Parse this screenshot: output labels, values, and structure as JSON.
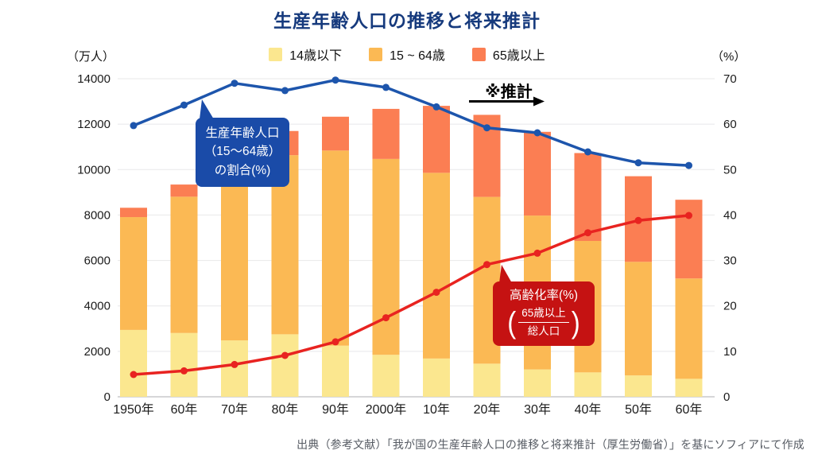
{
  "title": "生産年齢人口の推移と将来推計",
  "projection_note": "※推計",
  "source": "出典（参考文献）「我が国の生産年齢人口の推移と将来推計（厚生労働省）」を基にソフィアにて作成",
  "units": {
    "left": "（万人）",
    "right": "（%）"
  },
  "legend": {
    "items": [
      {
        "label": "14歳以下",
        "color": "#FBE78F"
      },
      {
        "label": "15 ~ 64歳",
        "color": "#FBB954"
      },
      {
        "label": "65歳以上",
        "color": "#FB7E53"
      }
    ]
  },
  "annotations": {
    "working_share": {
      "lines": [
        "生産年齢人口",
        "（15〜64歳）",
        "の割合(%)"
      ],
      "bg": "#1A4BA8"
    },
    "aging_rate": {
      "label": "高齢化率(%)",
      "fraction_top": "65歳以上",
      "fraction_bottom": "総人口",
      "bg": "#C51212"
    }
  },
  "colors": {
    "blue_line": "#1D55AC",
    "red_line": "#E82320",
    "grid": "#E8E8EA",
    "baseline": "#C9C9CC",
    "tick_text": "#1B1B1B"
  },
  "chart_data": {
    "type": "stacked-bar + line combo",
    "categories": [
      "1950年",
      "60年",
      "70年",
      "80年",
      "90年",
      "2000年",
      "10年",
      "20年",
      "30年",
      "40年",
      "50年",
      "60年"
    ],
    "series": [
      {
        "name": "14歳以下",
        "type": "bar",
        "stack": "population",
        "axis": "left",
        "color": "#FBE78F",
        "values": [
          2943,
          2807,
          2482,
          2751,
          2249,
          1847,
          1684,
          1457,
          1204,
          1073,
          939,
          791
        ]
      },
      {
        "name": "15 ~ 64歳",
        "type": "bar",
        "stack": "population",
        "axis": "left",
        "color": "#FBB954",
        "values": [
          4966,
          6000,
          7157,
          7883,
          8590,
          8622,
          8174,
          7341,
          6773,
          5787,
          5001,
          4418
        ]
      },
      {
        "name": "65歳以上",
        "type": "bar",
        "stack": "population",
        "axis": "left",
        "color": "#FB7E53",
        "values": [
          411,
          535,
          733,
          1065,
          1489,
          2204,
          2948,
          3612,
          3685,
          3868,
          3768,
          3464
        ]
      },
      {
        "name": "生産年齢人口（15〜64歳）の割合(%)",
        "type": "line",
        "axis": "right",
        "color": "#1D55AC",
        "values": [
          59.7,
          64.2,
          69.0,
          67.4,
          69.7,
          68.1,
          63.8,
          59.2,
          58.1,
          53.9,
          51.5,
          50.9
        ]
      },
      {
        "name": "高齢化率(%)（65歳以上/総人口）",
        "type": "line",
        "axis": "right",
        "color": "#E82320",
        "values": [
          4.9,
          5.7,
          7.1,
          9.1,
          12.1,
          17.4,
          23.0,
          29.1,
          31.6,
          36.1,
          38.8,
          39.9
        ]
      }
    ],
    "left_axis": {
      "label": "（万人）",
      "min": 0,
      "max": 14000,
      "ticks": [
        0,
        2000,
        4000,
        6000,
        8000,
        10000,
        12000,
        14000
      ]
    },
    "right_axis": {
      "label": "（%）",
      "min": 0,
      "max": 70,
      "ticks": [
        0,
        10,
        20,
        30,
        40,
        50,
        60,
        70
      ]
    },
    "grid": true,
    "legend_position": "top",
    "projection_starts_at": "20年"
  }
}
